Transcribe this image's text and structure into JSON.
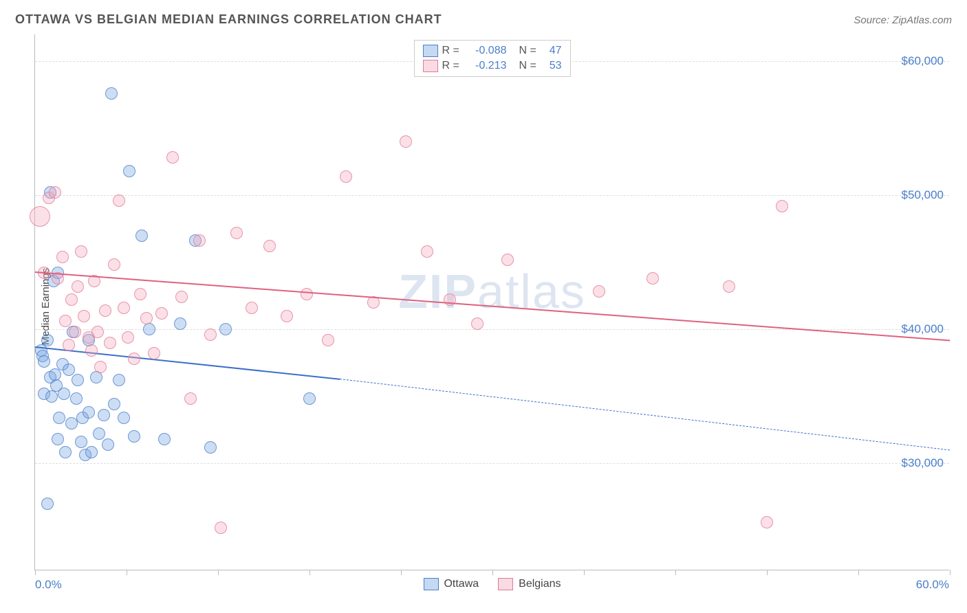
{
  "header": {
    "title": "OTTAWA VS BELGIAN MEDIAN EARNINGS CORRELATION CHART",
    "source_prefix": "Source: ",
    "source_name": "ZipAtlas.com"
  },
  "watermark": {
    "bold": "ZIP",
    "rest": "atlas"
  },
  "chart": {
    "type": "scatter",
    "ylabel": "Median Earnings",
    "background_color": "#ffffff",
    "grid_color": "#dddddd",
    "axis_color": "#bbbbbb",
    "tick_label_color": "#4a7ec9",
    "xlim": [
      0,
      60
    ],
    "xlim_labels": [
      "0.0%",
      "60.0%"
    ],
    "xtick_positions": [
      0,
      6,
      12,
      18,
      24,
      30,
      36,
      42,
      48,
      54,
      60
    ],
    "ylim": [
      22000,
      62000
    ],
    "ytick_values": [
      30000,
      40000,
      50000,
      60000
    ],
    "ytick_labels": [
      "$30,000",
      "$40,000",
      "$50,000",
      "$60,000"
    ],
    "point_radius": 9,
    "point_fill_opacity": 0.35,
    "point_stroke_opacity": 0.75,
    "point_stroke_width": 1.5,
    "series": [
      {
        "id": "ottawa",
        "label": "Ottawa",
        "color": "#6fa0e0",
        "stroke_color": "#4a7ec9",
        "R": "-0.088",
        "N": "47",
        "trend": {
          "color": "#3b6fc9",
          "width": 2.5,
          "solid_from": [
            0,
            38700
          ],
          "solid_to": [
            20,
            36300
          ],
          "dash_from": [
            20,
            36300
          ],
          "dash_to": [
            60,
            31000
          ]
        },
        "points": [
          {
            "x": 0.4,
            "y": 38400
          },
          {
            "x": 0.5,
            "y": 38000
          },
          {
            "x": 0.6,
            "y": 37600
          },
          {
            "x": 0.6,
            "y": 35200
          },
          {
            "x": 0.8,
            "y": 27000
          },
          {
            "x": 0.8,
            "y": 39200
          },
          {
            "x": 1.0,
            "y": 50200
          },
          {
            "x": 1.0,
            "y": 36400
          },
          {
            "x": 1.1,
            "y": 35000
          },
          {
            "x": 1.2,
            "y": 43600
          },
          {
            "x": 1.3,
            "y": 36600
          },
          {
            "x": 1.4,
            "y": 35800
          },
          {
            "x": 1.5,
            "y": 44200
          },
          {
            "x": 1.5,
            "y": 31800
          },
          {
            "x": 1.6,
            "y": 33400
          },
          {
            "x": 1.8,
            "y": 37400
          },
          {
            "x": 1.9,
            "y": 35200
          },
          {
            "x": 2.0,
            "y": 30800
          },
          {
            "x": 2.2,
            "y": 37000
          },
          {
            "x": 2.4,
            "y": 33000
          },
          {
            "x": 2.5,
            "y": 39800
          },
          {
            "x": 2.7,
            "y": 34800
          },
          {
            "x": 2.8,
            "y": 36200
          },
          {
            "x": 3.0,
            "y": 31600
          },
          {
            "x": 3.1,
            "y": 33400
          },
          {
            "x": 3.3,
            "y": 30600
          },
          {
            "x": 3.5,
            "y": 33800
          },
          {
            "x": 3.5,
            "y": 39200
          },
          {
            "x": 3.7,
            "y": 30800
          },
          {
            "x": 4.0,
            "y": 36400
          },
          {
            "x": 4.2,
            "y": 32200
          },
          {
            "x": 4.5,
            "y": 33600
          },
          {
            "x": 4.8,
            "y": 31400
          },
          {
            "x": 5.0,
            "y": 57600
          },
          {
            "x": 5.2,
            "y": 34400
          },
          {
            "x": 5.5,
            "y": 36200
          },
          {
            "x": 5.8,
            "y": 33400
          },
          {
            "x": 6.2,
            "y": 51800
          },
          {
            "x": 6.5,
            "y": 32000
          },
          {
            "x": 7.0,
            "y": 47000
          },
          {
            "x": 7.5,
            "y": 40000
          },
          {
            "x": 8.5,
            "y": 31800
          },
          {
            "x": 9.5,
            "y": 40400
          },
          {
            "x": 10.5,
            "y": 46600
          },
          {
            "x": 11.5,
            "y": 31200
          },
          {
            "x": 12.5,
            "y": 40000
          },
          {
            "x": 18.0,
            "y": 34800
          }
        ]
      },
      {
        "id": "belgians",
        "label": "Belgians",
        "color": "#f3a6ba",
        "stroke_color": "#e07a96",
        "R": "-0.213",
        "N": "53",
        "trend": {
          "color": "#e0607f",
          "width": 2.5,
          "solid_from": [
            0,
            44300
          ],
          "solid_to": [
            60,
            39200
          ]
        },
        "points": [
          {
            "x": 0.3,
            "y": 48400,
            "r": 15
          },
          {
            "x": 0.6,
            "y": 44200
          },
          {
            "x": 0.9,
            "y": 49800
          },
          {
            "x": 1.3,
            "y": 50200
          },
          {
            "x": 1.5,
            "y": 43800
          },
          {
            "x": 1.8,
            "y": 45400
          },
          {
            "x": 2.0,
            "y": 40600
          },
          {
            "x": 2.2,
            "y": 38800
          },
          {
            "x": 2.4,
            "y": 42200
          },
          {
            "x": 2.6,
            "y": 39800
          },
          {
            "x": 2.8,
            "y": 43200
          },
          {
            "x": 3.0,
            "y": 45800
          },
          {
            "x": 3.2,
            "y": 41000
          },
          {
            "x": 3.5,
            "y": 39400
          },
          {
            "x": 3.7,
            "y": 38400
          },
          {
            "x": 3.9,
            "y": 43600
          },
          {
            "x": 4.1,
            "y": 39800
          },
          {
            "x": 4.3,
            "y": 37200
          },
          {
            "x": 4.6,
            "y": 41400
          },
          {
            "x": 4.9,
            "y": 39000
          },
          {
            "x": 5.2,
            "y": 44800
          },
          {
            "x": 5.5,
            "y": 49600
          },
          {
            "x": 5.8,
            "y": 41600
          },
          {
            "x": 6.1,
            "y": 39400
          },
          {
            "x": 6.5,
            "y": 37800
          },
          {
            "x": 6.9,
            "y": 42600
          },
          {
            "x": 7.3,
            "y": 40800
          },
          {
            "x": 7.8,
            "y": 38200
          },
          {
            "x": 8.3,
            "y": 41200
          },
          {
            "x": 9.0,
            "y": 52800
          },
          {
            "x": 9.6,
            "y": 42400
          },
          {
            "x": 10.2,
            "y": 34800
          },
          {
            "x": 10.8,
            "y": 46600
          },
          {
            "x": 11.5,
            "y": 39600
          },
          {
            "x": 12.2,
            "y": 25200
          },
          {
            "x": 13.2,
            "y": 47200
          },
          {
            "x": 14.2,
            "y": 41600
          },
          {
            "x": 15.4,
            "y": 46200
          },
          {
            "x": 16.5,
            "y": 41000
          },
          {
            "x": 17.8,
            "y": 42600
          },
          {
            "x": 19.2,
            "y": 39200
          },
          {
            "x": 20.4,
            "y": 51400
          },
          {
            "x": 22.2,
            "y": 42000
          },
          {
            "x": 24.3,
            "y": 54000
          },
          {
            "x": 25.7,
            "y": 45800
          },
          {
            "x": 27.2,
            "y": 42200
          },
          {
            "x": 29.0,
            "y": 40400
          },
          {
            "x": 31.0,
            "y": 45200
          },
          {
            "x": 37.0,
            "y": 42800
          },
          {
            "x": 40.5,
            "y": 43800
          },
          {
            "x": 45.5,
            "y": 43200
          },
          {
            "x": 48.0,
            "y": 25600
          },
          {
            "x": 49.0,
            "y": 49200
          }
        ]
      }
    ]
  }
}
